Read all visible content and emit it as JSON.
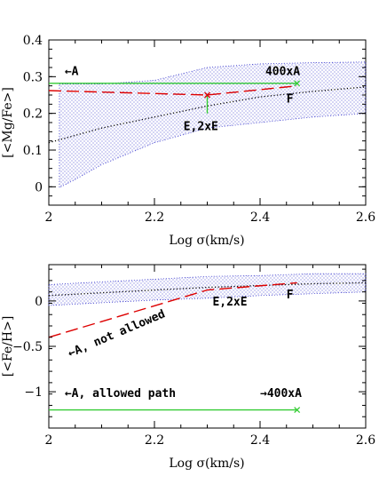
{
  "chart_data": [
    {
      "type": "line",
      "xlabel": "Log σ(km/s)",
      "ylabel": "[<Mg/Fe>]",
      "xlim": [
        2.0,
        2.6
      ],
      "ylim": [
        -0.05,
        0.4
      ],
      "xticks": [
        2,
        2.2,
        2.4,
        2.6
      ],
      "xtick_labels": [
        "2",
        "2.2",
        "2.4",
        "2.6"
      ],
      "yticks": [
        0,
        0.1,
        0.2,
        0.3,
        0.4
      ],
      "ytick_labels": [
        "0",
        "0.1",
        "0.2",
        "0.3",
        "0.4"
      ],
      "band": {
        "color": "#3333cc",
        "upper": [
          [
            2.02,
            0.28
          ],
          [
            2.1,
            0.28
          ],
          [
            2.2,
            0.29
          ],
          [
            2.3,
            0.325
          ],
          [
            2.4,
            0.335
          ],
          [
            2.5,
            0.338
          ],
          [
            2.6,
            0.34
          ]
        ],
        "lower": [
          [
            2.6,
            0.2
          ],
          [
            2.5,
            0.19
          ],
          [
            2.4,
            0.175
          ],
          [
            2.3,
            0.16
          ],
          [
            2.2,
            0.12
          ],
          [
            2.1,
            0.06
          ],
          [
            2.05,
            0.02
          ],
          [
            2.02,
            -0.002
          ]
        ]
      },
      "series": [
        {
          "style": "dotted",
          "color": "#000000",
          "x": [
            2.0,
            2.1,
            2.2,
            2.3,
            2.4,
            2.5,
            2.6
          ],
          "y": [
            0.12,
            0.16,
            0.19,
            0.22,
            0.245,
            0.26,
            0.272
          ]
        },
        {
          "style": "solid",
          "color": "#33cc33",
          "x": [
            2.0,
            2.47
          ],
          "y": [
            0.282,
            0.282
          ]
        },
        {
          "style": "dashed",
          "color": "#dd0000",
          "x": [
            2.0,
            2.3,
            2.47
          ],
          "y": [
            0.262,
            0.25,
            0.275
          ]
        },
        {
          "style": "solid",
          "color": "#33cc33",
          "x": [
            2.3,
            2.3
          ],
          "y": [
            0.25,
            0.2
          ]
        }
      ],
      "markers": [
        {
          "x": 2.3,
          "y": 0.25,
          "color": "#dd0000"
        },
        {
          "x": 2.47,
          "y": 0.282,
          "color": "#33cc33"
        }
      ],
      "annotations": [
        {
          "text": "←A",
          "x": 2.03,
          "y": 0.305
        },
        {
          "text": "400xA",
          "x": 2.41,
          "y": 0.305
        },
        {
          "text": "F",
          "x": 2.45,
          "y": 0.23
        },
        {
          "text": "E,2xE",
          "x": 2.255,
          "y": 0.155
        }
      ]
    },
    {
      "type": "line",
      "xlabel": "Log σ(km/s)",
      "ylabel": "[<Fe/H>]",
      "xlim": [
        2.0,
        2.6
      ],
      "ylim": [
        -1.4,
        0.4
      ],
      "xticks": [
        2,
        2.2,
        2.4,
        2.6
      ],
      "xtick_labels": [
        "2",
        "2.2",
        "2.4",
        "2.6"
      ],
      "yticks": [
        -1,
        -0.5,
        0
      ],
      "ytick_labels": [
        "−1",
        "−0.5",
        "0"
      ],
      "band": {
        "color": "#3333cc",
        "upper": [
          [
            2.0,
            0.18
          ],
          [
            2.1,
            0.21
          ],
          [
            2.2,
            0.24
          ],
          [
            2.3,
            0.27
          ],
          [
            2.4,
            0.28
          ],
          [
            2.5,
            0.3
          ],
          [
            2.6,
            0.3
          ]
        ],
        "lower": [
          [
            2.6,
            0.1
          ],
          [
            2.5,
            0.08
          ],
          [
            2.4,
            0.06
          ],
          [
            2.3,
            0.03
          ],
          [
            2.2,
            0.01
          ],
          [
            2.1,
            -0.02
          ],
          [
            2.0,
            -0.05
          ]
        ]
      },
      "series": [
        {
          "style": "dotted",
          "color": "#000000",
          "x": [
            2.0,
            2.1,
            2.2,
            2.3,
            2.4,
            2.5,
            2.6
          ],
          "y": [
            0.06,
            0.09,
            0.12,
            0.15,
            0.17,
            0.19,
            0.2
          ]
        },
        {
          "style": "dashed",
          "color": "#dd0000",
          "x": [
            2.0,
            2.3,
            2.47
          ],
          "y": [
            -0.4,
            0.12,
            0.2
          ]
        },
        {
          "style": "solid",
          "color": "#33cc33",
          "x": [
            2.0,
            2.47
          ],
          "y": [
            -1.2,
            -1.2
          ]
        }
      ],
      "markers": [
        {
          "x": 2.47,
          "y": -1.2,
          "color": "#33cc33"
        }
      ],
      "annotations": [
        {
          "text": "E,2xE",
          "x": 2.31,
          "y": -0.05
        },
        {
          "text": "F",
          "x": 2.45,
          "y": 0.03
        },
        {
          "text": "←A, not allowed",
          "x": 2.04,
          "y": -0.62,
          "rotate": -23
        },
        {
          "text": "←A, allowed path",
          "x": 2.03,
          "y": -1.06
        },
        {
          "text": "→400xA",
          "x": 2.4,
          "y": -1.06
        }
      ]
    }
  ]
}
